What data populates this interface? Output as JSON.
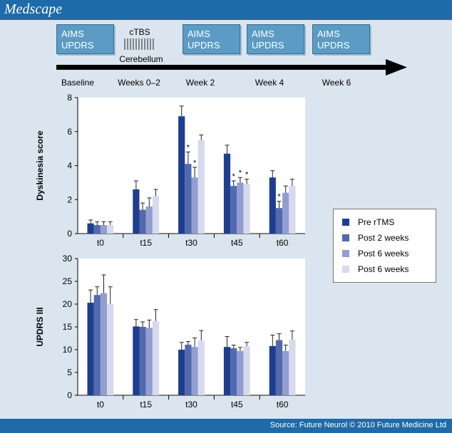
{
  "header": {
    "logo": "Medscape"
  },
  "timeline": {
    "boxes": [
      {
        "line1": "AIMS",
        "line2": "UPDRS"
      },
      {
        "line1": "AIMS",
        "line2": "UPDRS"
      },
      {
        "line1": "AIMS",
        "line2": "UPDRS"
      },
      {
        "line1": "AIMS",
        "line2": "UPDRS"
      }
    ],
    "stimulation": {
      "top": "cTBS",
      "bottom": "Cerebellum"
    },
    "labels": [
      "Baseline",
      "Weeks 0–2",
      "Week 2",
      "Week 4",
      "Week 6"
    ]
  },
  "colors": [
    "#1f3d8f",
    "#5169ad",
    "#939ed0",
    "#d7d9ee"
  ],
  "legend": [
    "Pre rTMS",
    "Post 2 weeks",
    "Post 6 weeks",
    "Post 6 weeks"
  ],
  "chart_data": [
    {
      "type": "bar",
      "ylabel": "Dyskinesia score",
      "ylim": [
        0,
        8
      ],
      "yticks": [
        0,
        2,
        4,
        6,
        8
      ],
      "categories": [
        "t0",
        "t15",
        "t30",
        "t45",
        "t60"
      ],
      "significance_marker": "*",
      "series": [
        {
          "name": "Pre rTMS",
          "values": [
            0.6,
            2.6,
            6.9,
            4.7,
            3.3
          ],
          "errors": [
            0.2,
            0.5,
            0.6,
            0.5,
            0.4
          ],
          "significant": [
            false,
            false,
            false,
            false,
            false
          ]
        },
        {
          "name": "Post 2 weeks",
          "values": [
            0.5,
            1.4,
            4.1,
            2.8,
            1.5
          ],
          "errors": [
            0.2,
            0.4,
            0.7,
            0.3,
            0.4
          ],
          "significant": [
            false,
            false,
            true,
            true,
            true
          ]
        },
        {
          "name": "Post 6 weeks",
          "values": [
            0.5,
            1.6,
            3.3,
            3.0,
            2.4
          ],
          "errors": [
            0.2,
            0.5,
            0.6,
            0.3,
            0.4
          ],
          "significant": [
            false,
            false,
            true,
            true,
            false
          ]
        },
        {
          "name": "Post 6 weeks",
          "values": [
            0.5,
            2.2,
            5.5,
            2.9,
            2.8
          ],
          "errors": [
            0.2,
            0.4,
            0.3,
            0.3,
            0.4
          ],
          "significant": [
            false,
            false,
            false,
            true,
            false
          ]
        }
      ]
    },
    {
      "type": "bar",
      "ylabel": "UPDRS III",
      "ylim": [
        0,
        30
      ],
      "yticks": [
        0,
        5,
        10,
        15,
        20,
        25,
        30
      ],
      "categories": [
        "t0",
        "t15",
        "t30",
        "t45",
        "t60"
      ],
      "series": [
        {
          "name": "Pre rTMS",
          "values": [
            20.3,
            15.1,
            10.0,
            10.6,
            10.8
          ],
          "errors": [
            2.8,
            1.5,
            1.6,
            2.3,
            2.4
          ]
        },
        {
          "name": "Post 2 weeks",
          "values": [
            22.0,
            15.0,
            11.1,
            10.3,
            12.1
          ],
          "errors": [
            1.8,
            1.1,
            0.7,
            0.7,
            1.4
          ]
        },
        {
          "name": "Post 6 weeks",
          "values": [
            22.4,
            14.8,
            10.6,
            9.7,
            9.7
          ],
          "errors": [
            4.0,
            1.7,
            2.0,
            0.8,
            1.3
          ]
        },
        {
          "name": "Post 6 weeks",
          "values": [
            20.1,
            16.3,
            12.0,
            10.8,
            12.2
          ],
          "errors": [
            3.7,
            2.5,
            2.2,
            0.8,
            1.9
          ]
        }
      ]
    }
  ],
  "footer": {
    "source": "Source: Future Neurol © 2010 Future Medicine Ltd"
  }
}
